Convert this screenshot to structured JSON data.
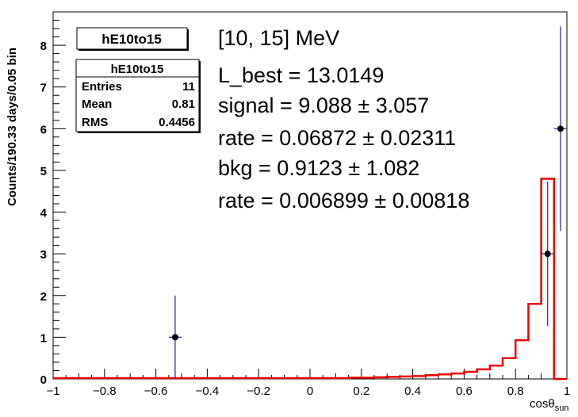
{
  "chart_data": {
    "type": "histogram",
    "title_box": "hE10to15",
    "ylabel": "Counts/190.33 days/0.05 bin",
    "xlabel_main": "cosθ",
    "xlabel_sub": "sun",
    "xlim": [
      -1,
      1
    ],
    "ylim": [
      0,
      8.8
    ],
    "x_ticks": [
      -1,
      -0.8,
      -0.6,
      -0.4,
      -0.2,
      0,
      0.2,
      0.4,
      0.6,
      0.8,
      1
    ],
    "x_tick_labels": [
      "−1",
      "−0.8",
      "−0.6",
      "−0.4",
      "−0.2",
      "0",
      "0.2",
      "0.4",
      "0.6",
      "0.8",
      "1"
    ],
    "y_ticks": [
      0,
      1,
      2,
      3,
      4,
      5,
      6,
      7,
      8
    ],
    "y_tick_labels": [
      "0",
      "1",
      "2",
      "3",
      "4",
      "5",
      "6",
      "7",
      "8"
    ],
    "bin_width": 0.05,
    "fit_color": "#ee0000",
    "data_color": "#000000",
    "error_color": "#2222aa",
    "fit_histogram": {
      "bin_low_edges": [
        -1.0,
        -0.95,
        -0.9,
        -0.85,
        -0.8,
        -0.75,
        -0.7,
        -0.65,
        -0.6,
        -0.55,
        -0.5,
        -0.45,
        -0.4,
        -0.35,
        -0.3,
        -0.25,
        -0.2,
        -0.15,
        -0.1,
        -0.05,
        0.0,
        0.05,
        0.1,
        0.15,
        0.2,
        0.25,
        0.3,
        0.35,
        0.4,
        0.45,
        0.5,
        0.55,
        0.6,
        0.65,
        0.7,
        0.75,
        0.8,
        0.85,
        0.9,
        0.95
      ],
      "values": [
        0.02,
        0.02,
        0.02,
        0.02,
        0.02,
        0.02,
        0.02,
        0.02,
        0.02,
        0.02,
        0.02,
        0.02,
        0.02,
        0.02,
        0.02,
        0.02,
        0.02,
        0.02,
        0.02,
        0.02,
        0.02,
        0.02,
        0.02,
        0.03,
        0.03,
        0.04,
        0.05,
        0.06,
        0.07,
        0.09,
        0.11,
        0.13,
        0.17,
        0.23,
        0.32,
        0.5,
        0.93,
        1.8,
        4.8,
        0.0
      ]
    },
    "data_points": [
      {
        "x": -0.525,
        "y": 1,
        "err_low": 1.0,
        "err_high": 1.0
      },
      {
        "x": 0.925,
        "y": 3,
        "err_low": 1.73,
        "err_high": 1.73
      },
      {
        "x": 0.975,
        "y": 6,
        "err_low": 2.45,
        "err_high": 2.45
      }
    ],
    "stats_box": {
      "name": "hE10to15",
      "rows": [
        {
          "label": "Entries",
          "value": "11"
        },
        {
          "label": "Mean",
          "value": "0.81"
        },
        {
          "label": "RMS",
          "value": "0.4456"
        }
      ]
    },
    "annotations": [
      "[10, 15] MeV",
      "L_best = 13.0149",
      "signal = 9.088 ± 3.057",
      "rate = 0.06872  ± 0.02311",
      "bkg = 0.9123 ± 1.082",
      "rate = 0.006899  ± 0.00818"
    ]
  }
}
